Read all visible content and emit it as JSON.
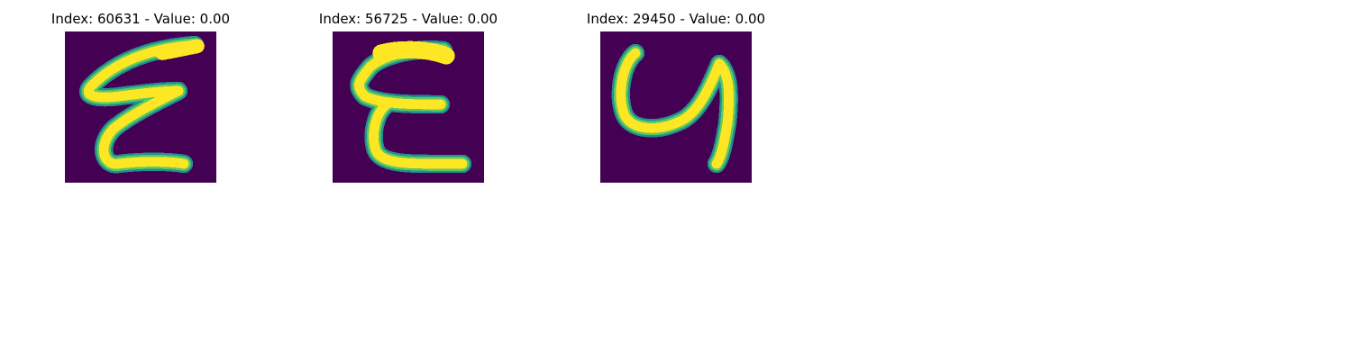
{
  "figure": {
    "colormap": {
      "background": "#440154",
      "low": "#31688e",
      "mid": "#21918c",
      "high": "#5ec962",
      "peak": "#fde725"
    },
    "panels": [
      {
        "title": "Index: 60631 - Value: 0.00",
        "glyph": "handwritten-digit-3-reversed"
      },
      {
        "title": "Index: 56725 - Value: 0.00",
        "glyph": "handwritten-letter-E"
      },
      {
        "title": "Index: 29450 - Value: 0.00",
        "glyph": "handwritten-digit-4"
      }
    ]
  }
}
